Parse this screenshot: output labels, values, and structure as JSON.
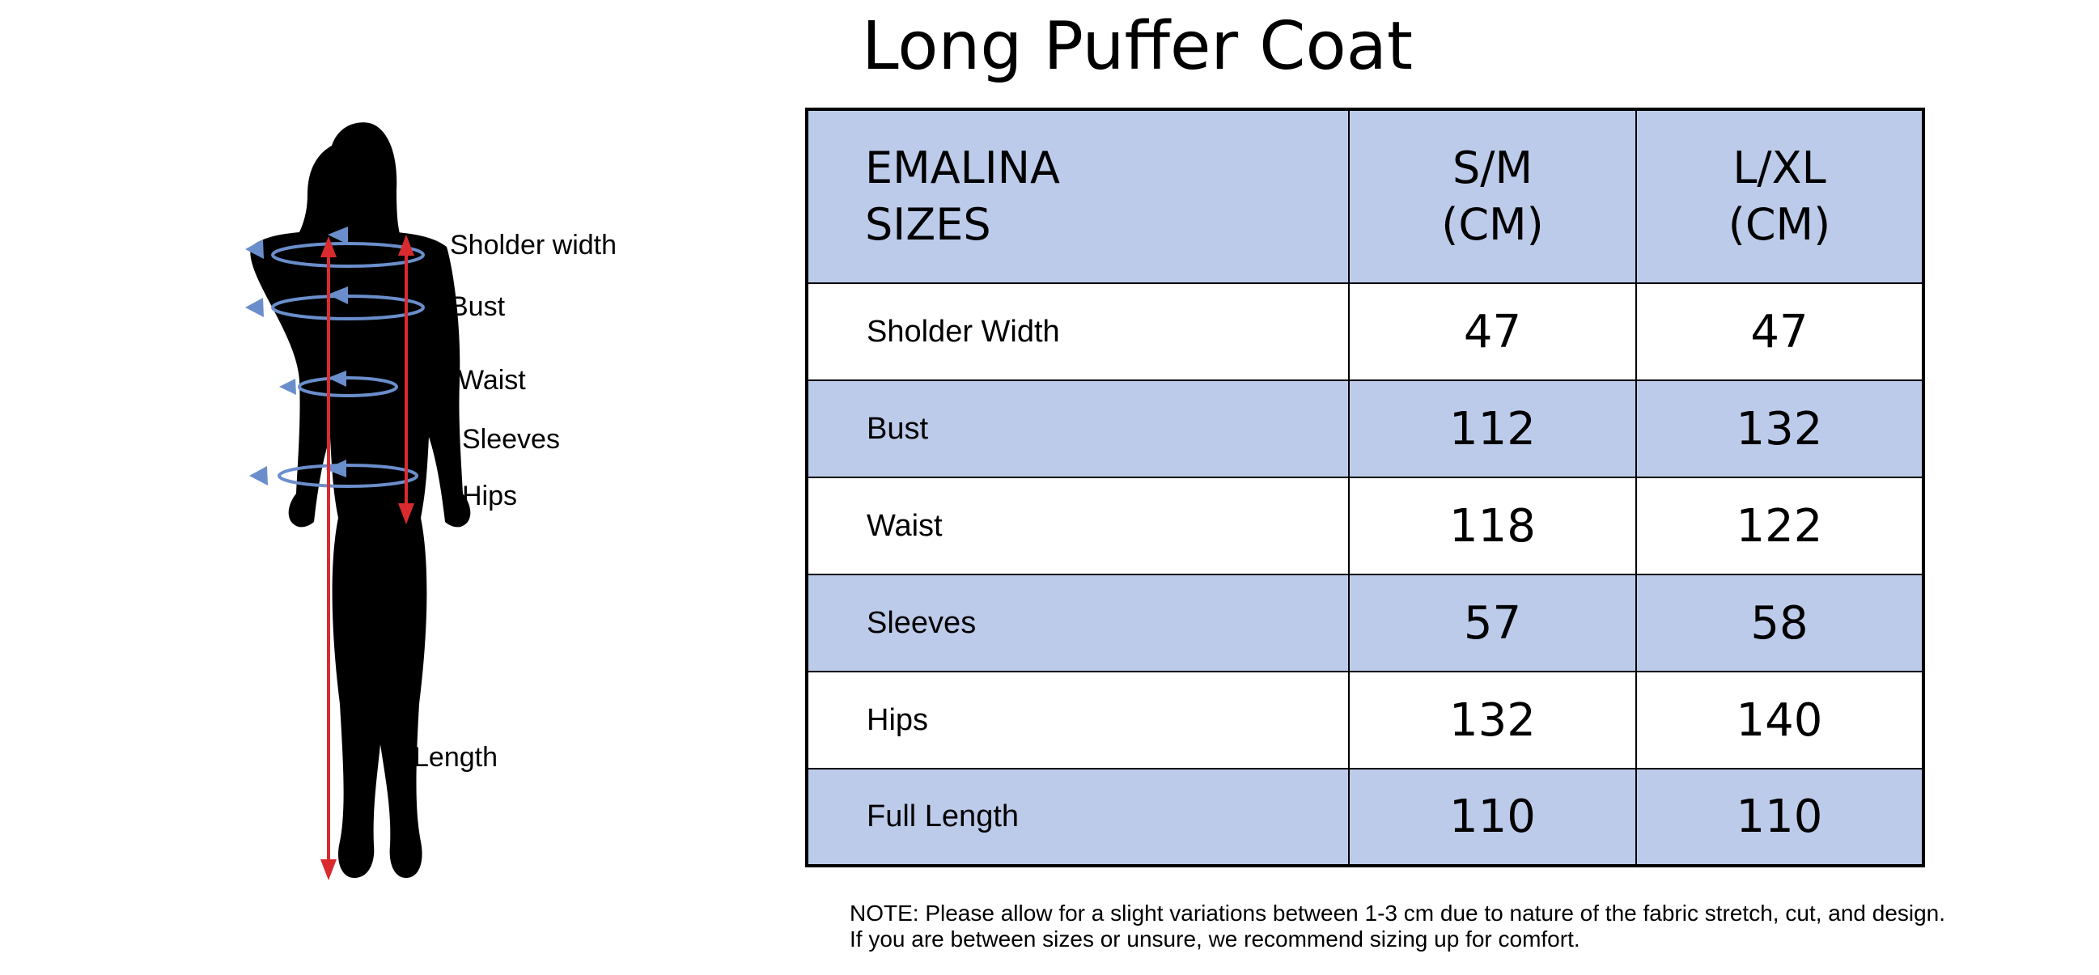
{
  "title": "Long Puffer Coat",
  "figure": {
    "labels": {
      "shoulder": "Sholder width",
      "bust": "Bust",
      "waist": "Waist",
      "sleeves": "Sleeves",
      "hips": "Hips",
      "length": "Length"
    },
    "colors": {
      "silhouette": "#000000",
      "circumference_arrows": "#6a8ecb",
      "length_arrows": "#d92b2f"
    }
  },
  "table": {
    "header": {
      "label_line1": "EMALINA",
      "label_line2": "SIZES",
      "sizes": [
        {
          "line1": "S/M",
          "line2": "(CM)"
        },
        {
          "line1": "L/XL",
          "line2": "(CM)"
        }
      ]
    },
    "rows": [
      {
        "label": "Sholder Width",
        "values": [
          "47",
          "47"
        ]
      },
      {
        "label": "Bust",
        "values": [
          "112",
          "132"
        ]
      },
      {
        "label": "Waist",
        "values": [
          "118",
          "122"
        ]
      },
      {
        "label": "Sleeves",
        "values": [
          "57",
          "58"
        ]
      },
      {
        "label": "Hips",
        "values": [
          "132",
          "140"
        ]
      },
      {
        "label": "Full Length",
        "values": [
          "110",
          "110"
        ]
      }
    ],
    "colors": {
      "shaded_row": "#bdcbea",
      "plain_row": "#ffffff",
      "border": "#000000"
    }
  },
  "note": {
    "line1": "NOTE: Please allow for a slight variations between 1-3 cm due to nature of the fabric stretch, cut, and design.",
    "line2": "If you are between sizes or unsure, we recommend sizing up for comfort."
  }
}
